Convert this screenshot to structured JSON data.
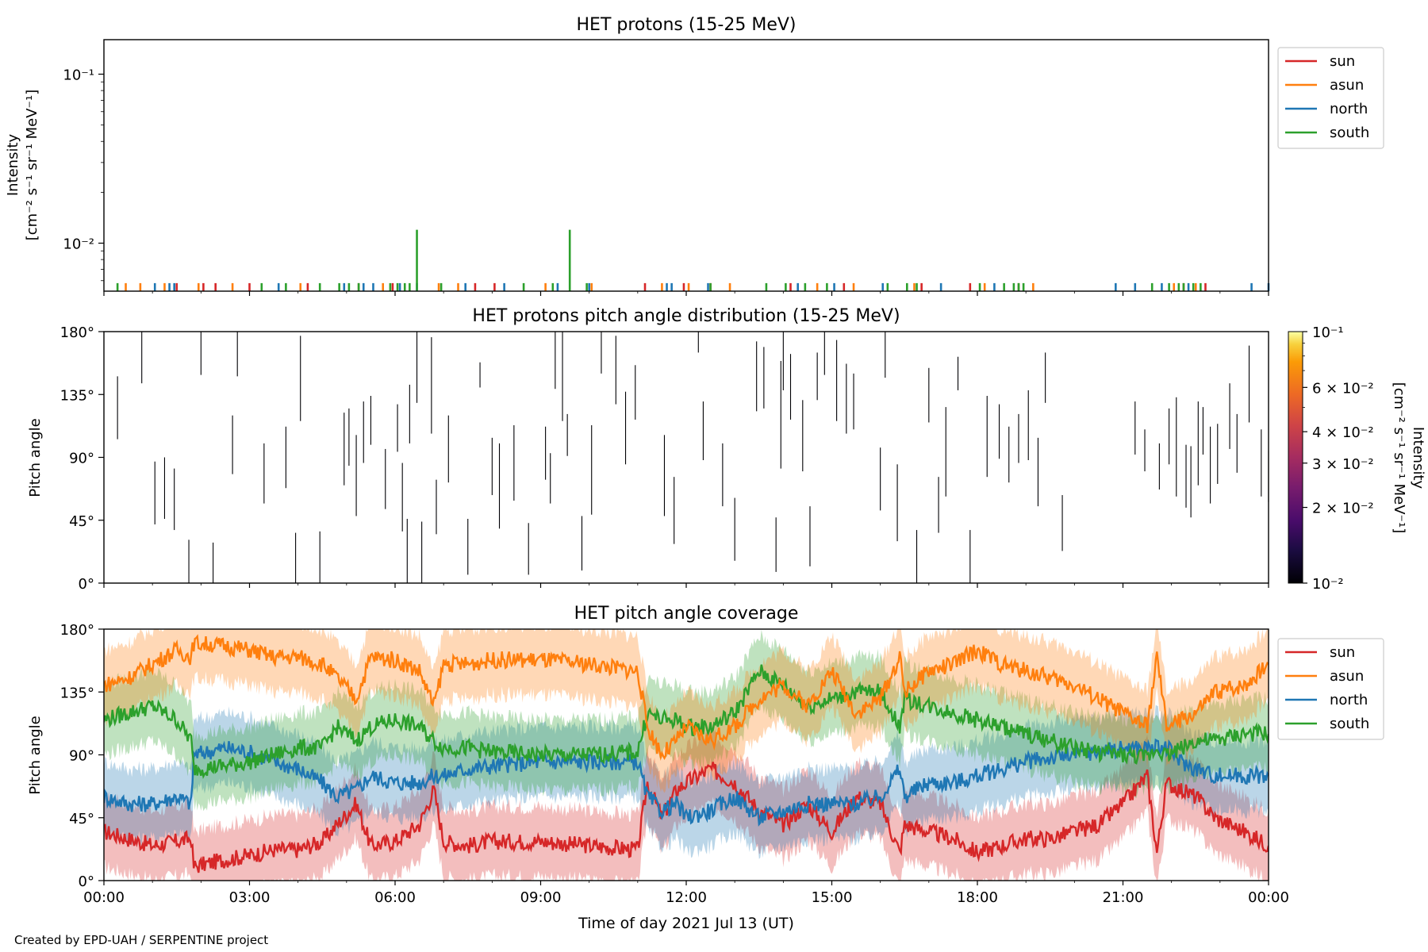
{
  "figure": {
    "credit": "Created by EPD-UAH / SERPENTINE project",
    "xlabel": "Time of day 2021 Jul 13 (UT)",
    "xticks": [
      "00:00",
      "03:00",
      "06:00",
      "09:00",
      "12:00",
      "15:00",
      "18:00",
      "21:00",
      "00:00"
    ],
    "series_colors": {
      "sun": "#d62728",
      "asun": "#ff7f0e",
      "north": "#1f77b4",
      "south": "#2ca02c"
    }
  },
  "chart_data": [
    {
      "type": "line",
      "title": "HET protons (15-25 MeV)",
      "ylabel_lines": [
        "Intensity",
        "[cm⁻² s⁻¹ sr⁻¹ MeV⁻¹]"
      ],
      "yscale": "log",
      "ylim": [
        0.0052,
        0.16
      ],
      "yticks": [
        {
          "value": 0.1,
          "label": "10⁻¹"
        },
        {
          "value": 0.01,
          "label": "10⁻²"
        }
      ],
      "xlim_hours": [
        0,
        24
      ],
      "legend": {
        "placement": "outside-right",
        "entries": [
          "sun",
          "asun",
          "north",
          "south"
        ]
      },
      "note": "Sparse single-count spikes; most reach only the bottom of the axis (~0.0058).",
      "spikes": {
        "sun": [
          1.5,
          2.05,
          2.3,
          3.0,
          4.2,
          5.25,
          5.95,
          7.65,
          8.05,
          11.15,
          11.95,
          12.5,
          14.15,
          15.25,
          16.85,
          17.85,
          18.85,
          22.25,
          22.7
        ],
        "asun": [
          0.45,
          0.75,
          1.25,
          1.95,
          2.65,
          4.05,
          5.75,
          6.9,
          7.3,
          9.1,
          10.05,
          11.5,
          12.05,
          12.9,
          14.7,
          15.45,
          16.7,
          18.15,
          19.15,
          22.05,
          22.5
        ],
        "north": [
          1.05,
          1.35,
          1.45,
          3.6,
          4.95,
          5.35,
          5.55,
          6.1,
          6.45,
          7.45,
          8.25,
          9.35,
          10.0,
          11.6,
          11.7,
          12.45,
          14.3,
          15.05,
          16.05,
          17.25,
          18.35,
          20.85,
          21.25,
          21.8,
          22.35,
          23.65,
          24.0
        ],
        "south": [
          0.28,
          3.25,
          3.75,
          4.45,
          4.85,
          5.05,
          5.25,
          5.9,
          6.05,
          6.2,
          6.3,
          6.95,
          8.65,
          9.25,
          9.95,
          12.5,
          13.65,
          14.05,
          14.45,
          14.9,
          16.15,
          16.55,
          16.75,
          18.05,
          18.55,
          18.75,
          18.85,
          18.95,
          21.6,
          21.95,
          22.15,
          22.25,
          22.45,
          22.6
        ],
        "tall": [
          {
            "series": "south",
            "x": 6.45,
            "y": 0.012
          },
          {
            "series": "south",
            "x": 9.6,
            "y": 0.012
          }
        ]
      }
    },
    {
      "type": "heatmap",
      "title": "HET protons pitch angle distribution (15-25 MeV)",
      "ylabel": "Pitch angle",
      "ylim": [
        0,
        180
      ],
      "yticks": [
        "0°",
        "45°",
        "90°",
        "135°",
        "180°"
      ],
      "colorbar": {
        "label_lines": [
          "Intensity",
          "[cm⁻² s⁻¹ sr⁻¹ MeV⁻¹]"
        ],
        "scale": "log",
        "range": [
          0.01,
          0.1
        ],
        "colormap": "inferno",
        "ticks": [
          {
            "value": 0.1,
            "label": "10⁻¹"
          },
          {
            "value": 0.06,
            "label": "6 × 10⁻²"
          },
          {
            "value": 0.04,
            "label": "4 × 10⁻²"
          },
          {
            "value": 0.03,
            "label": "3 × 10⁻²"
          },
          {
            "value": 0.02,
            "label": "2 × 10⁻²"
          },
          {
            "value": 0.01,
            "label": "10⁻²"
          }
        ]
      },
      "note": "Each mark is a near-zero-intensity bin drawn as a thin vertical line spanning pitch-angle range [y0, y1] at time x (hours).",
      "segments": [
        [
          0.28,
          103,
          148
        ],
        [
          0.78,
          143,
          180
        ],
        [
          1.05,
          42,
          87
        ],
        [
          1.25,
          46,
          90
        ],
        [
          1.45,
          38,
          82
        ],
        [
          1.75,
          0,
          31
        ],
        [
          2.0,
          149,
          180
        ],
        [
          2.25,
          0,
          29
        ],
        [
          2.65,
          78,
          120
        ],
        [
          2.75,
          148,
          180
        ],
        [
          3.3,
          57,
          100
        ],
        [
          3.75,
          68,
          112
        ],
        [
          3.95,
          0,
          36
        ],
        [
          4.05,
          116,
          177
        ],
        [
          4.45,
          0,
          37
        ],
        [
          4.95,
          70,
          122
        ],
        [
          5.05,
          84,
          125
        ],
        [
          5.2,
          48,
          106
        ],
        [
          5.35,
          86,
          130
        ],
        [
          5.5,
          99,
          134
        ],
        [
          5.8,
          53,
          96
        ],
        [
          6.05,
          94,
          128
        ],
        [
          6.15,
          37,
          86
        ],
        [
          6.25,
          0,
          46
        ],
        [
          6.3,
          100,
          142
        ],
        [
          6.45,
          129,
          180
        ],
        [
          6.55,
          0,
          44
        ],
        [
          6.75,
          107,
          176
        ],
        [
          6.85,
          35,
          74
        ],
        [
          7.1,
          72,
          120
        ],
        [
          7.5,
          6,
          46
        ],
        [
          7.75,
          140,
          158
        ],
        [
          8.0,
          63,
          104
        ],
        [
          8.15,
          39,
          100
        ],
        [
          8.45,
          59,
          113
        ],
        [
          8.75,
          6,
          43
        ],
        [
          9.1,
          74,
          112
        ],
        [
          9.2,
          57,
          93
        ],
        [
          9.3,
          139,
          180
        ],
        [
          9.45,
          116,
          180
        ],
        [
          9.55,
          91,
          121
        ],
        [
          9.85,
          9,
          48
        ],
        [
          10.05,
          49,
          113
        ],
        [
          10.25,
          150,
          180
        ],
        [
          10.55,
          128,
          177
        ],
        [
          10.75,
          85,
          137
        ],
        [
          10.95,
          117,
          156
        ],
        [
          11.55,
          48,
          106
        ],
        [
          11.75,
          28,
          76
        ],
        [
          12.25,
          165,
          180
        ],
        [
          12.35,
          88,
          130
        ],
        [
          12.75,
          55,
          100
        ],
        [
          13.0,
          16,
          61
        ],
        [
          13.45,
          123,
          173
        ],
        [
          13.6,
          125,
          169
        ],
        [
          13.85,
          8,
          47
        ],
        [
          13.95,
          82,
          159
        ],
        [
          14.0,
          138,
          180
        ],
        [
          14.15,
          117,
          164
        ],
        [
          14.4,
          80,
          131
        ],
        [
          14.55,
          12,
          55
        ],
        [
          14.7,
          131,
          165
        ],
        [
          14.85,
          149,
          180
        ],
        [
          15.1,
          116,
          174
        ],
        [
          15.3,
          107,
          157
        ],
        [
          15.45,
          110,
          150
        ],
        [
          16.0,
          52,
          97
        ],
        [
          16.1,
          147,
          180
        ],
        [
          16.35,
          30,
          85
        ],
        [
          16.75,
          0,
          38
        ],
        [
          17.0,
          115,
          154
        ],
        [
          17.2,
          36,
          76
        ],
        [
          17.35,
          62,
          126
        ],
        [
          17.6,
          138,
          162
        ],
        [
          17.85,
          0,
          38
        ],
        [
          18.2,
          76,
          134
        ],
        [
          18.45,
          89,
          128
        ],
        [
          18.65,
          72,
          112
        ],
        [
          18.85,
          86,
          121
        ],
        [
          19.05,
          88,
          138
        ],
        [
          19.25,
          55,
          104
        ],
        [
          19.4,
          129,
          165
        ],
        [
          19.75,
          23,
          63
        ],
        [
          21.25,
          92,
          130
        ],
        [
          21.45,
          80,
          110
        ],
        [
          21.75,
          67,
          100
        ],
        [
          21.95,
          85,
          125
        ],
        [
          22.1,
          62,
          133
        ],
        [
          22.3,
          54,
          99
        ],
        [
          22.4,
          47,
          98
        ],
        [
          22.55,
          70,
          130
        ],
        [
          22.65,
          92,
          126
        ],
        [
          22.8,
          57,
          112
        ],
        [
          22.95,
          71,
          114
        ],
        [
          23.2,
          96,
          143
        ],
        [
          23.35,
          79,
          121
        ],
        [
          23.6,
          115,
          170
        ],
        [
          23.85,
          62,
          110
        ],
        [
          24.0,
          58,
          95
        ]
      ]
    },
    {
      "type": "line",
      "title": "HET pitch angle coverage",
      "ylabel": "Pitch angle",
      "ylim": [
        0,
        180
      ],
      "yticks": [
        "0°",
        "45°",
        "90°",
        "135°",
        "180°"
      ],
      "xlim_hours": [
        0,
        24
      ],
      "legend": {
        "placement": "outside-right",
        "entries": [
          "sun",
          "asun",
          "north",
          "south"
        ]
      },
      "note": "Centre pitch angle per telescope with shaded min/max coverage band (~±25°).",
      "x_hours": [
        0,
        0.5,
        1,
        1.5,
        1.8,
        1.85,
        2.5,
        3,
        3.5,
        4,
        4.5,
        4.8,
        5.2,
        5.5,
        6,
        6.5,
        6.8,
        7,
        7.5,
        8,
        9,
        10,
        11,
        11.2,
        11.5,
        11.8,
        12,
        12.5,
        13,
        13.5,
        14,
        14.5,
        15,
        15.5,
        16,
        16.4,
        16.5,
        17,
        17.5,
        18,
        18.5,
        19,
        19.5,
        20,
        20.5,
        21,
        21.5,
        21.7,
        21.9,
        22.2,
        22.5,
        22.9,
        23.5,
        24
      ],
      "series": [
        {
          "name": "sun",
          "values": [
            35,
            30,
            25,
            28,
            30,
            10,
            15,
            18,
            22,
            22,
            28,
            40,
            55,
            25,
            28,
            40,
            65,
            28,
            25,
            28,
            28,
            25,
            22,
            70,
            45,
            65,
            70,
            80,
            70,
            50,
            40,
            55,
            35,
            60,
            55,
            20,
            40,
            35,
            30,
            20,
            25,
            30,
            30,
            35,
            40,
            55,
            75,
            20,
            70,
            65,
            60,
            45,
            35,
            25
          ]
        },
        {
          "name": "asun",
          "values": [
            140,
            145,
            155,
            165,
            160,
            170,
            168,
            165,
            160,
            160,
            155,
            145,
            130,
            160,
            158,
            150,
            125,
            155,
            155,
            158,
            158,
            155,
            150,
            110,
            90,
            100,
            110,
            100,
            110,
            130,
            140,
            125,
            150,
            120,
            130,
            160,
            135,
            150,
            155,
            165,
            155,
            150,
            145,
            140,
            130,
            120,
            110,
            160,
            110,
            115,
            120,
            135,
            140,
            155
          ]
        },
        {
          "name": "north",
          "values": [
            60,
            55,
            55,
            60,
            55,
            90,
            95,
            92,
            85,
            80,
            70,
            60,
            65,
            75,
            70,
            70,
            75,
            75,
            80,
            82,
            85,
            85,
            85,
            60,
            50,
            55,
            45,
            50,
            60,
            45,
            50,
            55,
            55,
            55,
            60,
            80,
            60,
            70,
            70,
            75,
            80,
            85,
            88,
            90,
            92,
            95,
            95,
            95,
            95,
            85,
            80,
            75,
            75,
            75
          ]
        },
        {
          "name": "south",
          "values": [
            115,
            120,
            125,
            115,
            100,
            80,
            82,
            85,
            90,
            95,
            95,
            110,
            100,
            110,
            115,
            110,
            100,
            95,
            95,
            92,
            90,
            90,
            92,
            120,
            115,
            115,
            110,
            110,
            120,
            150,
            140,
            125,
            130,
            135,
            135,
            110,
            130,
            125,
            120,
            115,
            110,
            105,
            100,
            95,
            92,
            90,
            88,
            95,
            90,
            95,
            100,
            100,
            105,
            105
          ]
        }
      ]
    }
  ]
}
